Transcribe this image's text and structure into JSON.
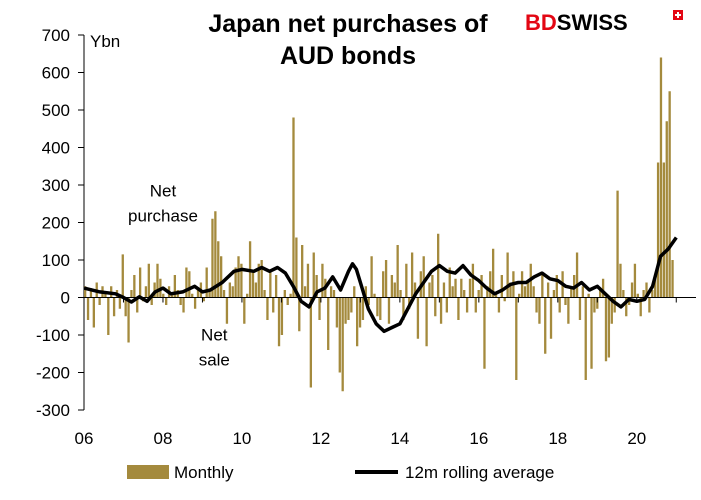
{
  "chart_data": {
    "type": "bar",
    "title_line1": "Japan net purchases of",
    "title_line2": "AUD bonds",
    "ylabel": "Ybn",
    "ylim": [
      -300,
      700
    ],
    "y_ticks": [
      700,
      600,
      500,
      400,
      300,
      200,
      100,
      0,
      -100,
      -200,
      -300
    ],
    "xlim": [
      2006,
      2021.5
    ],
    "x_ticks": [
      {
        "value": 2006,
        "label": "06"
      },
      {
        "value": 2008,
        "label": "08"
      },
      {
        "value": 2010,
        "label": "10"
      },
      {
        "value": 2012,
        "label": "12"
      },
      {
        "value": 2014,
        "label": "14"
      },
      {
        "value": 2016,
        "label": "16"
      },
      {
        "value": 2018,
        "label": "18"
      },
      {
        "value": 2020,
        "label": "20"
      }
    ],
    "annotations": [
      {
        "lines": [
          "Net",
          "purchase"
        ],
        "text_x": 2008.0,
        "text_y": 270
      },
      {
        "lines": [
          "Net",
          "sale"
        ],
        "text_x": 2009.3,
        "text_y": -115
      }
    ],
    "brand": {
      "bd": "BD",
      "swiss": "SWISS"
    },
    "legend": {
      "monthly": "Monthly",
      "rolling": "12m rolling average"
    },
    "colors": {
      "bar": "#A48A3D",
      "line": "#000000",
      "brand_red": "#E30613"
    },
    "series": [
      {
        "name": "Monthly",
        "type": "bar",
        "values": [
          30,
          -60,
          25,
          -80,
          40,
          -20,
          30,
          10,
          -100,
          30,
          -50,
          20,
          -30,
          115,
          -50,
          -120,
          20,
          60,
          -40,
          80,
          -10,
          30,
          90,
          -20,
          40,
          90,
          50,
          10,
          -20,
          30,
          10,
          60,
          20,
          -20,
          -40,
          80,
          70,
          10,
          -30,
          20,
          40,
          -10,
          80,
          20,
          210,
          230,
          150,
          110,
          20,
          -70,
          40,
          30,
          80,
          110,
          90,
          -70,
          10,
          150,
          70,
          40,
          90,
          100,
          20,
          -60,
          70,
          -40,
          60,
          -130,
          -100,
          20,
          -20,
          10,
          480,
          160,
          -90,
          140,
          30,
          90,
          -240,
          120,
          60,
          -60,
          90,
          50,
          -140,
          30,
          20,
          -80,
          -200,
          -250,
          -70,
          -60,
          -40,
          30,
          -130,
          -80,
          -60,
          30,
          -20,
          110,
          10,
          -50,
          -60,
          70,
          100,
          -70,
          60,
          40,
          140,
          20,
          -60,
          90,
          -30,
          120,
          40,
          -110,
          70,
          110,
          -130,
          40,
          60,
          -50,
          170,
          -70,
          40,
          -40,
          80,
          30,
          50,
          -60,
          50,
          20,
          -40,
          50,
          90,
          -40,
          20,
          60,
          -190,
          30,
          70,
          130,
          10,
          -40,
          60,
          -10,
          120,
          40,
          70,
          -220,
          10,
          70,
          30,
          40,
          90,
          30,
          -40,
          -70,
          60,
          -150,
          40,
          -110,
          20,
          60,
          -40,
          70,
          -20,
          -70,
          30,
          60,
          120,
          -60,
          30,
          -220,
          10,
          -190,
          -40,
          -30,
          20,
          50,
          -170,
          -160,
          -70,
          -40,
          285,
          90,
          20,
          -50,
          -20,
          40,
          90,
          10,
          -50,
          20,
          40,
          -40,
          20,
          60,
          360,
          640,
          360,
          470,
          550,
          100
        ]
      },
      {
        "name": "12m rolling average",
        "type": "line",
        "points": [
          [
            2006.0,
            25
          ],
          [
            2006.4,
            15
          ],
          [
            2006.8,
            10
          ],
          [
            2007.0,
            0
          ],
          [
            2007.2,
            -12
          ],
          [
            2007.4,
            2
          ],
          [
            2007.6,
            -10
          ],
          [
            2007.8,
            15
          ],
          [
            2008.0,
            25
          ],
          [
            2008.2,
            10
          ],
          [
            2008.5,
            15
          ],
          [
            2008.8,
            30
          ],
          [
            2009.0,
            15
          ],
          [
            2009.2,
            20
          ],
          [
            2009.5,
            40
          ],
          [
            2009.8,
            70
          ],
          [
            2010.0,
            75
          ],
          [
            2010.3,
            70
          ],
          [
            2010.5,
            80
          ],
          [
            2010.7,
            70
          ],
          [
            2010.9,
            80
          ],
          [
            2011.1,
            65
          ],
          [
            2011.3,
            30
          ],
          [
            2011.5,
            -10
          ],
          [
            2011.7,
            -25
          ],
          [
            2011.9,
            15
          ],
          [
            2012.1,
            25
          ],
          [
            2012.3,
            55
          ],
          [
            2012.5,
            20
          ],
          [
            2012.7,
            70
          ],
          [
            2012.8,
            90
          ],
          [
            2012.9,
            75
          ],
          [
            2013.0,
            40
          ],
          [
            2013.2,
            -30
          ],
          [
            2013.4,
            -70
          ],
          [
            2013.6,
            -90
          ],
          [
            2013.8,
            -80
          ],
          [
            2014.0,
            -70
          ],
          [
            2014.2,
            -30
          ],
          [
            2014.4,
            10
          ],
          [
            2014.6,
            40
          ],
          [
            2014.8,
            70
          ],
          [
            2015.0,
            85
          ],
          [
            2015.2,
            70
          ],
          [
            2015.4,
            65
          ],
          [
            2015.6,
            85
          ],
          [
            2015.8,
            60
          ],
          [
            2016.0,
            45
          ],
          [
            2016.2,
            25
          ],
          [
            2016.4,
            10
          ],
          [
            2016.6,
            20
          ],
          [
            2016.8,
            35
          ],
          [
            2017.0,
            40
          ],
          [
            2017.2,
            40
          ],
          [
            2017.4,
            55
          ],
          [
            2017.6,
            65
          ],
          [
            2017.8,
            50
          ],
          [
            2018.0,
            45
          ],
          [
            2018.2,
            30
          ],
          [
            2018.4,
            25
          ],
          [
            2018.6,
            40
          ],
          [
            2018.8,
            20
          ],
          [
            2019.0,
            30
          ],
          [
            2019.2,
            10
          ],
          [
            2019.4,
            -10
          ],
          [
            2019.6,
            -25
          ],
          [
            2019.8,
            -5
          ],
          [
            2020.0,
            -10
          ],
          [
            2020.2,
            -5
          ],
          [
            2020.4,
            30
          ],
          [
            2020.6,
            110
          ],
          [
            2020.8,
            130
          ],
          [
            2021.0,
            160
          ]
        ]
      }
    ]
  }
}
